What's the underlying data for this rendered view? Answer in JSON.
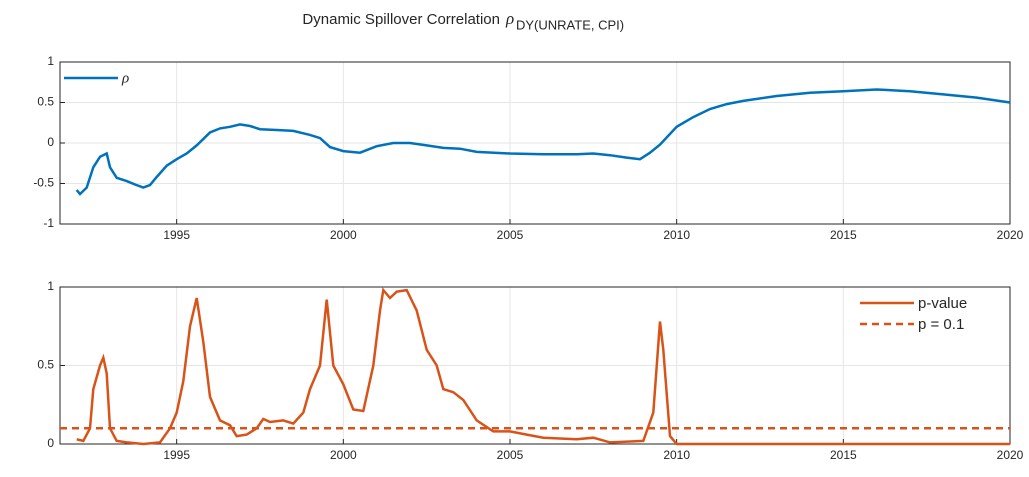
{
  "title": "Dynamic Spillover Correlation",
  "title_symbol": "ρ",
  "title_subscript": "DY(UNRATE, CPI)",
  "chart_data": [
    {
      "type": "line",
      "xlim": [
        1991.5,
        2020
      ],
      "xticks": [
        1995,
        2000,
        2005,
        2010,
        2015,
        2020
      ],
      "ylim": [
        -1,
        1
      ],
      "yticks": [
        -1,
        -0.5,
        0,
        0.5,
        1
      ],
      "grid": true,
      "legend": "upper-left",
      "series": [
        {
          "name": "ρ",
          "color": "#0072BD",
          "style": "solid",
          "x": [
            1992.0,
            1992.1,
            1992.3,
            1992.5,
            1992.7,
            1992.9,
            1993.0,
            1993.2,
            1993.5,
            1993.8,
            1994.0,
            1994.2,
            1994.4,
            1994.7,
            1995.0,
            1995.3,
            1995.6,
            1996.0,
            1996.3,
            1996.6,
            1996.9,
            1997.2,
            1997.5,
            1998.0,
            1998.5,
            1999.0,
            1999.3,
            1999.6,
            2000.0,
            2000.5,
            2001.0,
            2001.5,
            2002.0,
            2002.5,
            2003.0,
            2003.5,
            2004.0,
            2005.0,
            2006.0,
            2007.0,
            2007.5,
            2008.0,
            2008.5,
            2008.9,
            2009.2,
            2009.5,
            2010.0,
            2010.5,
            2011.0,
            2011.5,
            2012.0,
            2013.0,
            2014.0,
            2015.0,
            2016.0,
            2017.0,
            2018.0,
            2019.0,
            2020.0
          ],
          "values": [
            -0.58,
            -0.63,
            -0.55,
            -0.3,
            -0.17,
            -0.13,
            -0.3,
            -0.43,
            -0.47,
            -0.52,
            -0.55,
            -0.52,
            -0.42,
            -0.28,
            -0.2,
            -0.13,
            -0.03,
            0.13,
            0.18,
            0.2,
            0.23,
            0.21,
            0.17,
            0.16,
            0.15,
            0.1,
            0.06,
            -0.05,
            -0.1,
            -0.12,
            -0.04,
            0.0,
            0.0,
            -0.03,
            -0.06,
            -0.07,
            -0.11,
            -0.13,
            -0.14,
            -0.14,
            -0.13,
            -0.15,
            -0.18,
            -0.2,
            -0.12,
            -0.02,
            0.2,
            0.32,
            0.42,
            0.48,
            0.52,
            0.58,
            0.62,
            0.64,
            0.66,
            0.64,
            0.6,
            0.56,
            0.5
          ]
        }
      ]
    },
    {
      "type": "line",
      "xlim": [
        1991.5,
        2020
      ],
      "xticks": [
        1995,
        2000,
        2005,
        2010,
        2015,
        2020
      ],
      "ylim": [
        0,
        1
      ],
      "yticks": [
        0,
        0.5,
        1
      ],
      "grid": true,
      "legend": "upper-right",
      "series": [
        {
          "name": "p-value",
          "color": "#D95319",
          "style": "solid",
          "x": [
            1992.0,
            1992.2,
            1992.4,
            1992.5,
            1992.7,
            1992.8,
            1992.9,
            1993.0,
            1993.2,
            1993.5,
            1994.0,
            1994.5,
            1994.8,
            1995.0,
            1995.2,
            1995.4,
            1995.6,
            1995.8,
            1996.0,
            1996.3,
            1996.6,
            1996.8,
            1997.1,
            1997.4,
            1997.6,
            1997.8,
            1998.2,
            1998.5,
            1998.8,
            1999.0,
            1999.3,
            1999.5,
            1999.7,
            2000.0,
            2000.3,
            2000.6,
            2000.9,
            2001.1,
            2001.2,
            2001.4,
            2001.6,
            2001.9,
            2002.2,
            2002.5,
            2002.8,
            2003.0,
            2003.3,
            2003.6,
            2004.0,
            2004.5,
            2005.0,
            2005.5,
            2006.0,
            2007.0,
            2007.5,
            2008.0,
            2009.0,
            2009.3,
            2009.5,
            2009.6,
            2009.8,
            2010.0,
            2015.0,
            2020.0
          ],
          "values": [
            0.03,
            0.02,
            0.1,
            0.35,
            0.5,
            0.55,
            0.45,
            0.1,
            0.02,
            0.01,
            0.0,
            0.01,
            0.1,
            0.2,
            0.4,
            0.75,
            0.93,
            0.65,
            0.3,
            0.15,
            0.12,
            0.05,
            0.06,
            0.1,
            0.16,
            0.14,
            0.15,
            0.13,
            0.2,
            0.35,
            0.5,
            0.92,
            0.5,
            0.38,
            0.22,
            0.21,
            0.5,
            0.85,
            0.98,
            0.93,
            0.97,
            0.98,
            0.85,
            0.6,
            0.5,
            0.35,
            0.33,
            0.28,
            0.15,
            0.08,
            0.08,
            0.06,
            0.04,
            0.03,
            0.04,
            0.01,
            0.02,
            0.2,
            0.78,
            0.6,
            0.05,
            0.0,
            0.0,
            0.0
          ]
        },
        {
          "name": "p = 0.1",
          "color": "#D95319",
          "style": "dashed",
          "x": [
            1991.5,
            2020
          ],
          "values": [
            0.1,
            0.1
          ]
        }
      ]
    }
  ]
}
